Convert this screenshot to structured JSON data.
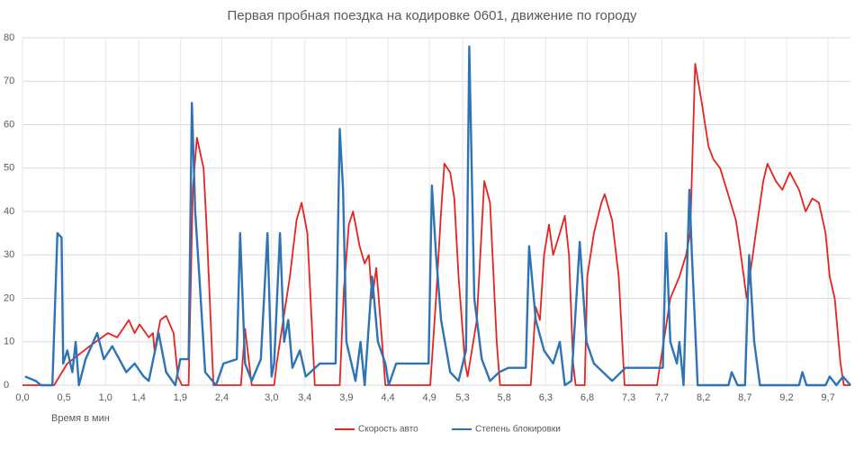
{
  "chart_data": {
    "type": "line",
    "title": "Первая пробная поездка на кодировке 0601, движение по городу",
    "x_label": "Время в мин",
    "xlim": [
      0,
      9.97
    ],
    "ylim": [
      0,
      80
    ],
    "yticks": [
      0,
      10,
      20,
      30,
      40,
      50,
      60,
      70,
      80
    ],
    "xticks": [
      {
        "value": 0.0,
        "label": "0,0"
      },
      {
        "value": 0.5,
        "label": "0,5"
      },
      {
        "value": 1.0,
        "label": "1,0"
      },
      {
        "value": 1.4,
        "label": "1,4"
      },
      {
        "value": 1.9,
        "label": "1,9"
      },
      {
        "value": 2.4,
        "label": "2,4"
      },
      {
        "value": 3.0,
        "label": "3,0"
      },
      {
        "value": 3.4,
        "label": "3,4"
      },
      {
        "value": 3.9,
        "label": "3,9"
      },
      {
        "value": 4.4,
        "label": "4,4"
      },
      {
        "value": 4.9,
        "label": "4,9"
      },
      {
        "value": 5.3,
        "label": "5,3"
      },
      {
        "value": 5.8,
        "label": "5,8"
      },
      {
        "value": 6.3,
        "label": "6,3"
      },
      {
        "value": 6.8,
        "label": "6,8"
      },
      {
        "value": 7.3,
        "label": "7,3"
      },
      {
        "value": 7.7,
        "label": "7,7"
      },
      {
        "value": 8.2,
        "label": "8,2"
      },
      {
        "value": 8.7,
        "label": "8,7"
      },
      {
        "value": 9.2,
        "label": "9,2"
      },
      {
        "value": 9.7,
        "label": "9,7"
      }
    ],
    "grid": true,
    "legend": "bottom",
    "series": [
      {
        "name": "Скорость авто",
        "color": "#e8221f",
        "x": [
          0,
          0.38,
          0.54,
          0.81,
          1.03,
          1.14,
          1.28,
          1.35,
          1.41,
          1.52,
          1.57,
          1.59,
          1.66,
          1.73,
          1.82,
          1.87,
          1.92,
          2.0,
          2.05,
          2.1,
          2.18,
          2.22,
          2.3,
          2.63,
          2.68,
          2.76,
          3.03,
          3.06,
          3.14,
          3.22,
          3.3,
          3.36,
          3.43,
          3.52,
          3.82,
          3.87,
          3.93,
          3.98,
          4.06,
          4.12,
          4.17,
          4.21,
          4.26,
          4.31,
          4.37,
          4.91,
          4.98,
          5.04,
          5.08,
          5.15,
          5.2,
          5.25,
          5.33,
          5.36,
          5.47,
          5.56,
          5.63,
          5.71,
          5.75,
          6.12,
          6.18,
          6.23,
          6.28,
          6.34,
          6.39,
          6.47,
          6.53,
          6.58,
          6.63,
          6.66,
          6.77,
          6.8,
          6.88,
          6.97,
          7.01,
          7.1,
          7.18,
          7.25,
          7.64,
          7.72,
          7.8,
          7.91,
          7.99,
          8.04,
          8.1,
          8.18,
          8.26,
          8.32,
          8.4,
          8.48,
          8.59,
          8.65,
          8.72,
          8.83,
          8.92,
          8.97,
          9.07,
          9.15,
          9.24,
          9.35,
          9.43,
          9.51,
          9.59,
          9.67,
          9.72,
          9.78,
          9.85,
          9.89,
          9.97
        ],
        "values": [
          0,
          0,
          5,
          9,
          12,
          11,
          15,
          12,
          14,
          11,
          12,
          8,
          15,
          16,
          12,
          2,
          0,
          0,
          45,
          57,
          50,
          35,
          0,
          0,
          13,
          0,
          0,
          5,
          15,
          25,
          38,
          42,
          35,
          0,
          0,
          22,
          37,
          40,
          32,
          28,
          30,
          20,
          27,
          15,
          0,
          0,
          20,
          40,
          51,
          49,
          43,
          25,
          5,
          2,
          15,
          47,
          42,
          10,
          0,
          0,
          18,
          15,
          30,
          37,
          30,
          35,
          39,
          30,
          5,
          0,
          0,
          25,
          35,
          42,
          44,
          38,
          25,
          0,
          0,
          10,
          20,
          25,
          30,
          35,
          74,
          65,
          55,
          52,
          50,
          45,
          38,
          30,
          20,
          35,
          47,
          51,
          47,
          45,
          49,
          45,
          40,
          43,
          42,
          35,
          25,
          20,
          5,
          0,
          0
        ]
      },
      {
        "name": "Степень блокировки",
        "color": "#2e74b5",
        "x": [
          0.03,
          0.16,
          0.22,
          0.36,
          0.42,
          0.47,
          0.49,
          0.54,
          0.6,
          0.64,
          0.68,
          0.76,
          0.9,
          0.98,
          1.08,
          1.25,
          1.35,
          1.46,
          1.52,
          1.64,
          1.73,
          1.84,
          1.9,
          2.0,
          2.04,
          2.08,
          2.13,
          2.2,
          2.33,
          2.42,
          2.58,
          2.62,
          2.68,
          2.76,
          2.87,
          2.95,
          3.0,
          3.03,
          3.1,
          3.15,
          3.2,
          3.25,
          3.34,
          3.41,
          3.58,
          3.77,
          3.82,
          3.86,
          3.9,
          4.01,
          4.07,
          4.12,
          4.21,
          4.28,
          4.37,
          4.41,
          4.5,
          4.89,
          4.93,
          4.98,
          5.04,
          5.15,
          5.25,
          5.34,
          5.38,
          5.44,
          5.53,
          5.63,
          5.74,
          5.85,
          6.06,
          6.1,
          6.18,
          6.28,
          6.39,
          6.47,
          6.53,
          6.61,
          6.71,
          6.79,
          6.88,
          7.1,
          7.26,
          7.71,
          7.75,
          7.8,
          7.88,
          7.91,
          7.96,
          8.03,
          8.06,
          8.13,
          8.5,
          8.54,
          8.61,
          8.7,
          8.75,
          8.81,
          8.88,
          9.35,
          9.39,
          9.44,
          9.67,
          9.72,
          9.8,
          9.88,
          9.97
        ],
        "values": [
          2,
          1,
          0,
          0,
          35,
          34,
          5,
          8,
          3,
          10,
          0,
          6,
          12,
          6,
          9,
          3,
          5,
          2,
          1,
          12,
          3,
          0,
          6,
          6,
          65,
          40,
          25,
          3,
          0,
          5,
          6,
          35,
          5,
          1,
          6,
          35,
          2,
          5,
          35,
          10,
          15,
          4,
          8,
          2,
          5,
          5,
          59,
          45,
          10,
          1,
          10,
          0,
          25,
          10,
          5,
          0,
          5,
          5,
          46,
          30,
          15,
          3,
          1,
          8,
          78,
          20,
          6,
          1,
          3,
          4,
          4,
          32,
          15,
          8,
          5,
          10,
          0,
          1,
          33,
          10,
          5,
          1,
          4,
          4,
          35,
          10,
          5,
          10,
          0,
          45,
          30,
          0,
          0,
          3,
          0,
          0,
          30,
          10,
          0,
          0,
          3,
          0,
          0,
          2,
          0,
          2,
          0
        ]
      }
    ]
  }
}
